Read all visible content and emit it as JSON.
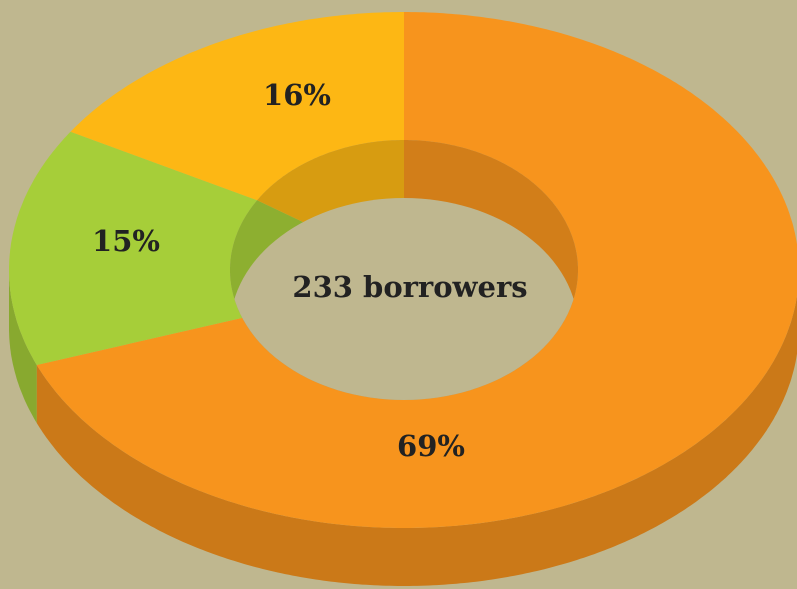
{
  "chart_data": {
    "type": "pie",
    "donut": true,
    "three_d": true,
    "values": [
      69,
      15,
      16
    ],
    "value_labels": [
      "69%",
      "15%",
      "16%"
    ],
    "colors": [
      "#f7941d",
      "#a6ce39",
      "#fdb714"
    ],
    "center_label": "233 borrowers"
  }
}
